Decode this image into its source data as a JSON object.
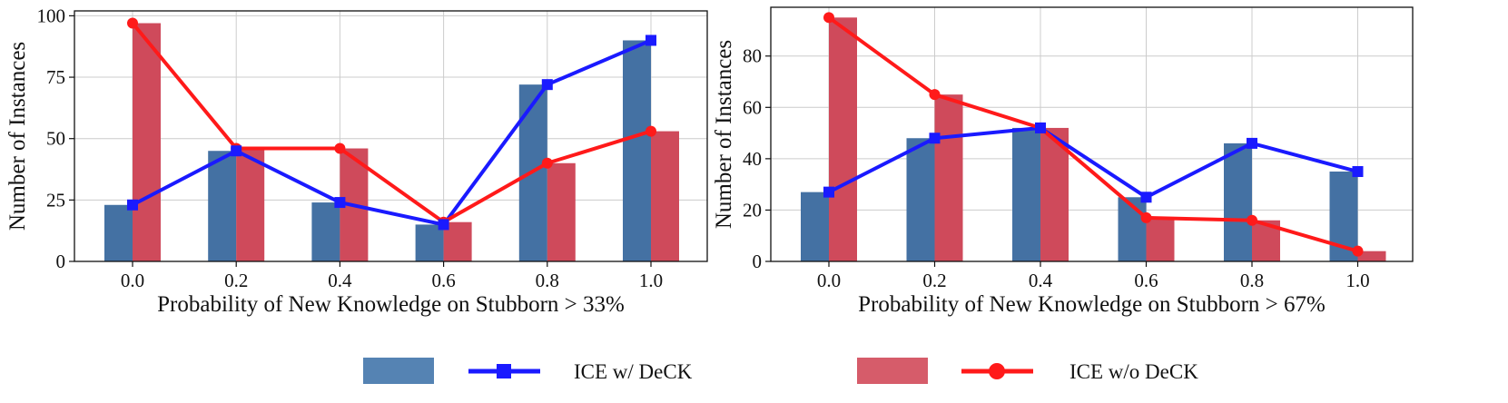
{
  "colors": {
    "bar_with": "#4471a3",
    "bar_without": "#cf4a5b",
    "line_with": "#1a1aff",
    "line_without": "#ff1a1a",
    "legend_bar_with": "#5583b3",
    "legend_bar_without": "#d65c6a",
    "grid": "#cccccc",
    "axis": "#111111"
  },
  "legend": {
    "with_label": "ICE w/ DeCK",
    "without_label": "ICE w/o DeCK"
  },
  "chart_data": [
    {
      "type": "bar+line",
      "title": "",
      "xlabel": "Probability of New Knowledge on Stubborn > 33%",
      "ylabel": "Number of Instances",
      "categories": [
        "0.0",
        "0.2",
        "0.4",
        "0.6",
        "0.8",
        "1.0"
      ],
      "ylim": [
        0,
        102
      ],
      "yticks": [
        0,
        25,
        50,
        75,
        100
      ],
      "grid": true,
      "series": [
        {
          "name": "ICE w/ DeCK",
          "kind": "bar",
          "values": [
            23,
            45,
            24,
            15,
            72,
            90
          ]
        },
        {
          "name": "ICE w/o DeCK",
          "kind": "bar",
          "values": [
            97,
            46,
            46,
            16,
            40,
            53
          ]
        },
        {
          "name": "ICE w/ DeCK",
          "kind": "line",
          "marker": "square",
          "values": [
            23,
            45,
            24,
            15,
            72,
            90
          ]
        },
        {
          "name": "ICE w/o DeCK",
          "kind": "line",
          "marker": "circle",
          "values": [
            97,
            46,
            46,
            16,
            40,
            53
          ]
        }
      ]
    },
    {
      "type": "bar+line",
      "title": "",
      "xlabel": "Probability of New Knowledge on Stubborn > 67%",
      "ylabel": "Number of Instances",
      "categories": [
        "0.0",
        "0.2",
        "0.4",
        "0.6",
        "0.8",
        "1.0"
      ],
      "ylim": [
        0,
        99
      ],
      "yticks": [
        0,
        20,
        40,
        60,
        80
      ],
      "grid": true,
      "series": [
        {
          "name": "ICE w/ DeCK",
          "kind": "bar",
          "values": [
            27,
            48,
            52,
            25,
            46,
            35
          ]
        },
        {
          "name": "ICE w/o DeCK",
          "kind": "bar",
          "values": [
            95,
            65,
            52,
            17,
            16,
            4
          ]
        },
        {
          "name": "ICE w/ DeCK",
          "kind": "line",
          "marker": "square",
          "values": [
            27,
            48,
            52,
            25,
            46,
            35
          ]
        },
        {
          "name": "ICE w/o DeCK",
          "kind": "line",
          "marker": "circle",
          "values": [
            95,
            65,
            52,
            17,
            16,
            4
          ]
        }
      ]
    }
  ]
}
